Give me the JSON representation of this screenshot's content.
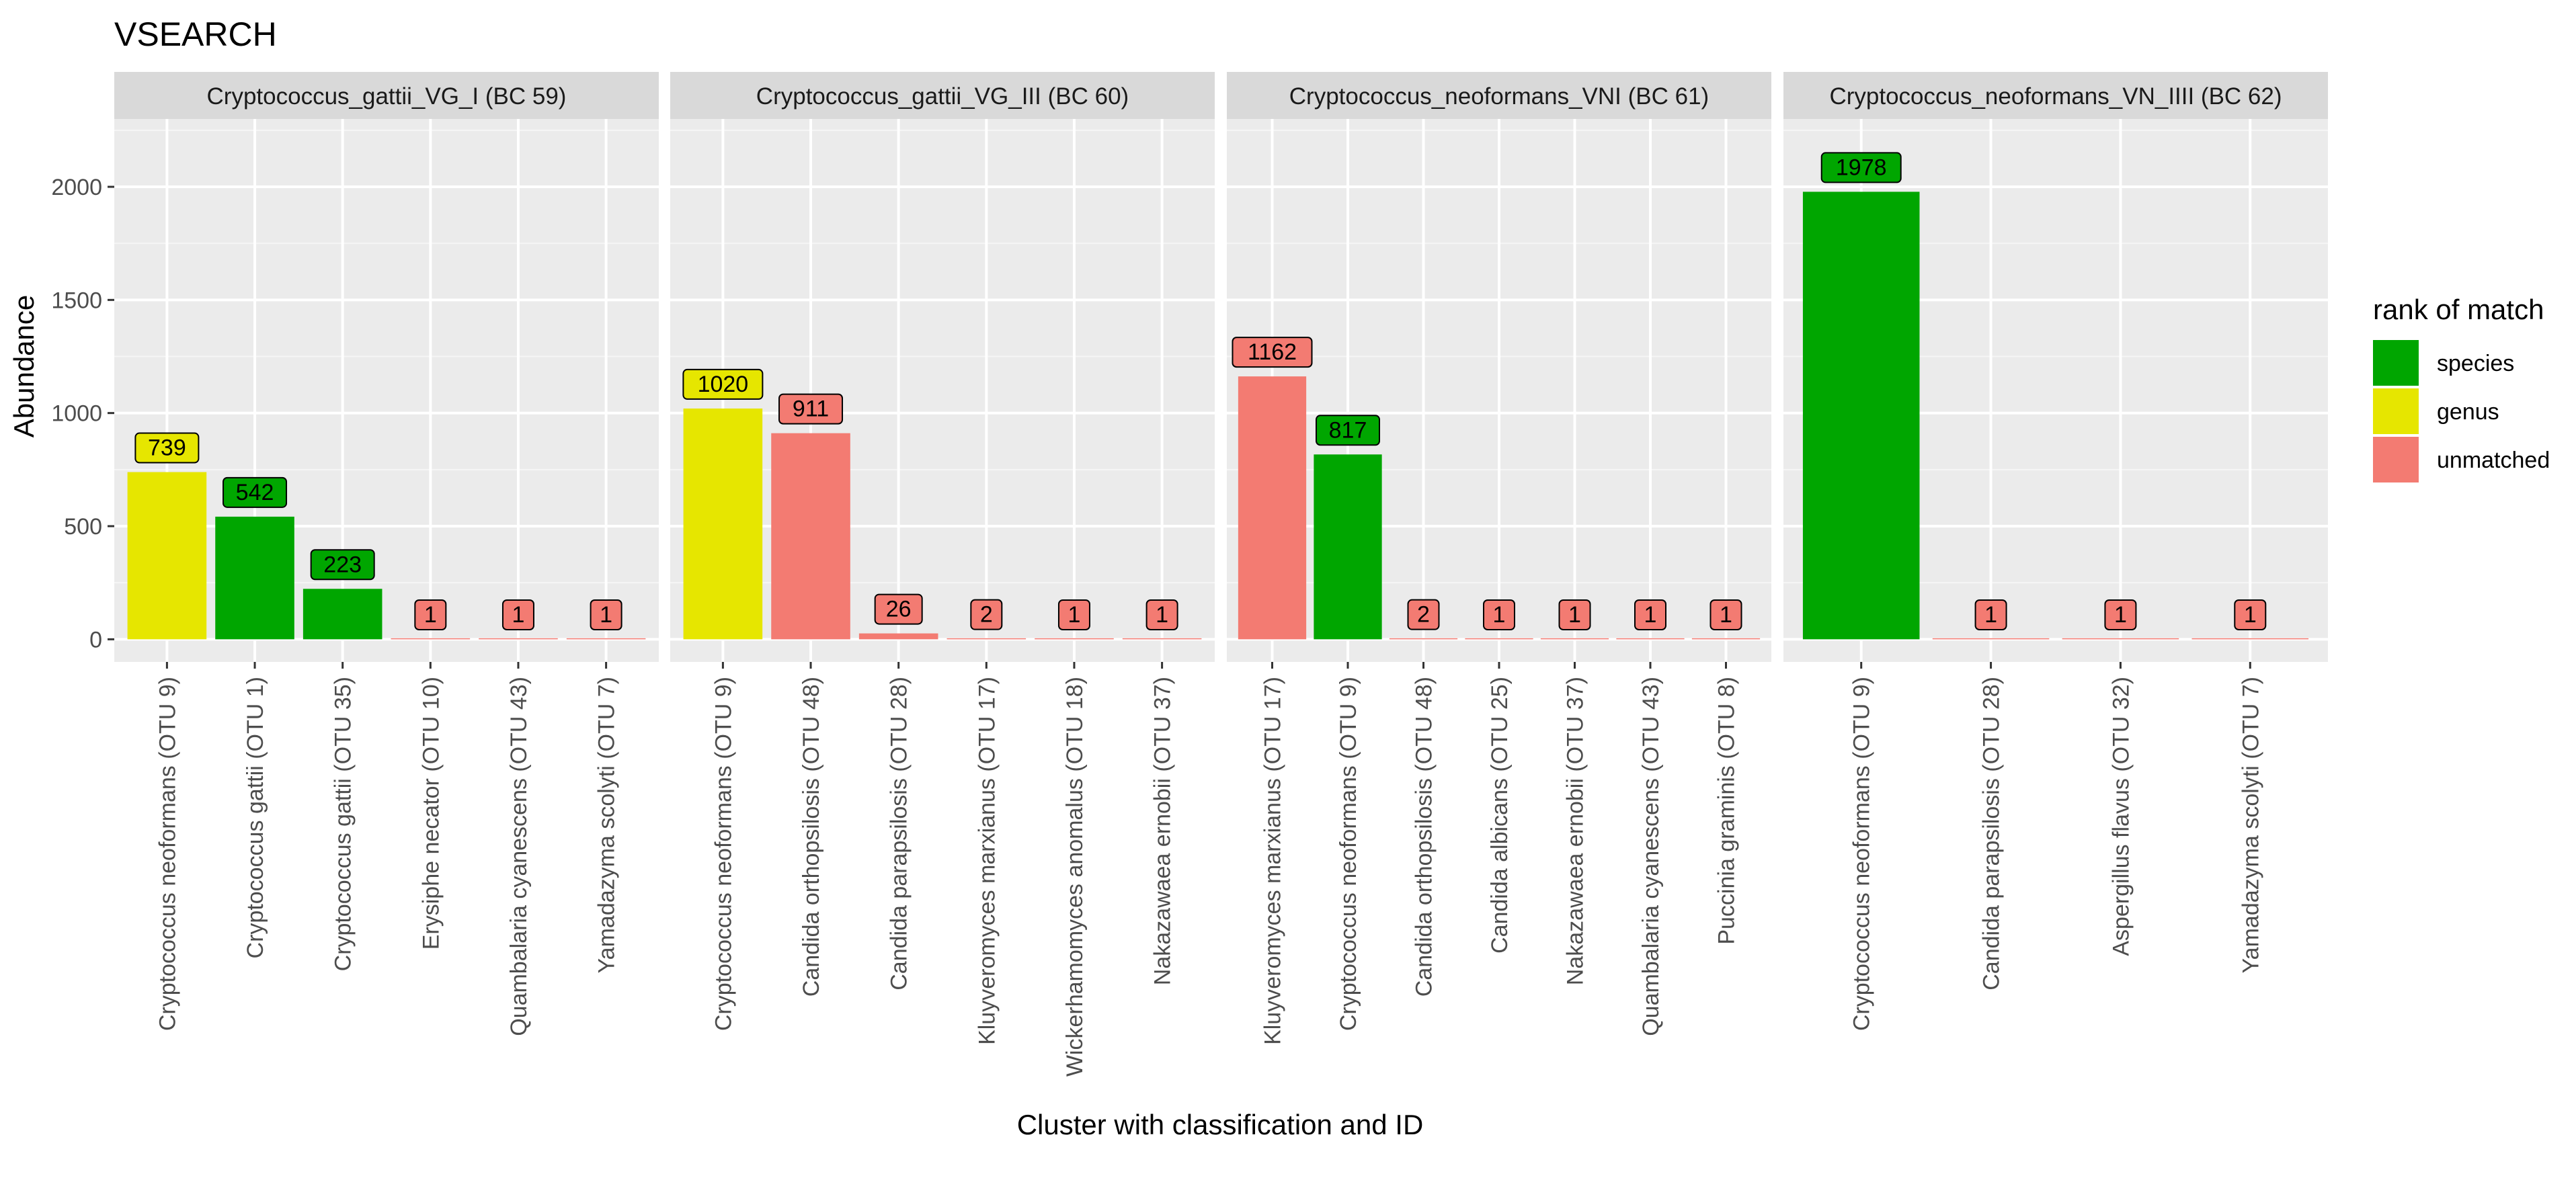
{
  "chart_data": {
    "type": "bar",
    "title": "VSEARCH",
    "xlabel": "Cluster with classification and ID",
    "ylabel": "Abundance",
    "ylim": [
      -100,
      2300
    ],
    "yticks": [
      0,
      500,
      1000,
      1500,
      2000
    ],
    "grid": true,
    "legend": {
      "title": "rank of match",
      "position": "right",
      "entries": [
        {
          "name": "species",
          "color": "#00A600"
        },
        {
          "name": "genus",
          "color": "#E6E600"
        },
        {
          "name": "unmatched",
          "color": "#F37B72"
        }
      ]
    },
    "panels": [
      {
        "title": "Cryptococcus_gattii_VG_I (BC 59)",
        "bars": [
          {
            "label": "Cryptococcus neoformans (OTU 9)",
            "value": 739,
            "rank": "genus"
          },
          {
            "label": "Cryptococcus gattii (OTU 1)",
            "value": 542,
            "rank": "species"
          },
          {
            "label": "Cryptococcus gattii (OTU 35)",
            "value": 223,
            "rank": "species"
          },
          {
            "label": "Erysiphe necator (OTU 10)",
            "value": 1,
            "rank": "unmatched"
          },
          {
            "label": "Quambalaria cyanescens (OTU 43)",
            "value": 1,
            "rank": "unmatched"
          },
          {
            "label": "Yamadazyma scolyti (OTU 7)",
            "value": 1,
            "rank": "unmatched"
          }
        ]
      },
      {
        "title": "Cryptococcus_gattii_VG_III (BC 60)",
        "bars": [
          {
            "label": "Cryptococcus neoformans (OTU 9)",
            "value": 1020,
            "rank": "genus"
          },
          {
            "label": "Candida orthopsilosis (OTU 48)",
            "value": 911,
            "rank": "unmatched"
          },
          {
            "label": "Candida parapsilosis (OTU 28)",
            "value": 26,
            "rank": "unmatched"
          },
          {
            "label": "Kluyveromyces marxianus (OTU 17)",
            "value": 2,
            "rank": "unmatched"
          },
          {
            "label": "Wickerhamomyces anomalus (OTU 18)",
            "value": 1,
            "rank": "unmatched"
          },
          {
            "label": "Nakazawaea ernobii (OTU 37)",
            "value": 1,
            "rank": "unmatched"
          }
        ]
      },
      {
        "title": "Cryptococcus_neoformans_VNI (BC 61)",
        "bars": [
          {
            "label": "Kluyveromyces marxianus (OTU 17)",
            "value": 1162,
            "rank": "unmatched"
          },
          {
            "label": "Cryptococcus neoformans (OTU 9)",
            "value": 817,
            "rank": "species"
          },
          {
            "label": "Candida orthopsilosis (OTU 48)",
            "value": 2,
            "rank": "unmatched"
          },
          {
            "label": "Candida albicans (OTU 25)",
            "value": 1,
            "rank": "unmatched"
          },
          {
            "label": "Nakazawaea ernobii (OTU 37)",
            "value": 1,
            "rank": "unmatched"
          },
          {
            "label": "Quambalaria cyanescens (OTU 43)",
            "value": 1,
            "rank": "unmatched"
          },
          {
            "label": "Puccinia graminis (OTU 8)",
            "value": 1,
            "rank": "unmatched"
          }
        ]
      },
      {
        "title": "Cryptococcus_neoformans_VN_IIII (BC 62)",
        "bars": [
          {
            "label": "Cryptococcus neoformans (OTU 9)",
            "value": 1978,
            "rank": "species"
          },
          {
            "label": "Candida parapsilosis (OTU 28)",
            "value": 1,
            "rank": "unmatched"
          },
          {
            "label": "Aspergillus flavus (OTU 32)",
            "value": 1,
            "rank": "unmatched"
          },
          {
            "label": "Yamadazyma scolyti (OTU 7)",
            "value": 1,
            "rank": "unmatched"
          }
        ]
      }
    ]
  }
}
